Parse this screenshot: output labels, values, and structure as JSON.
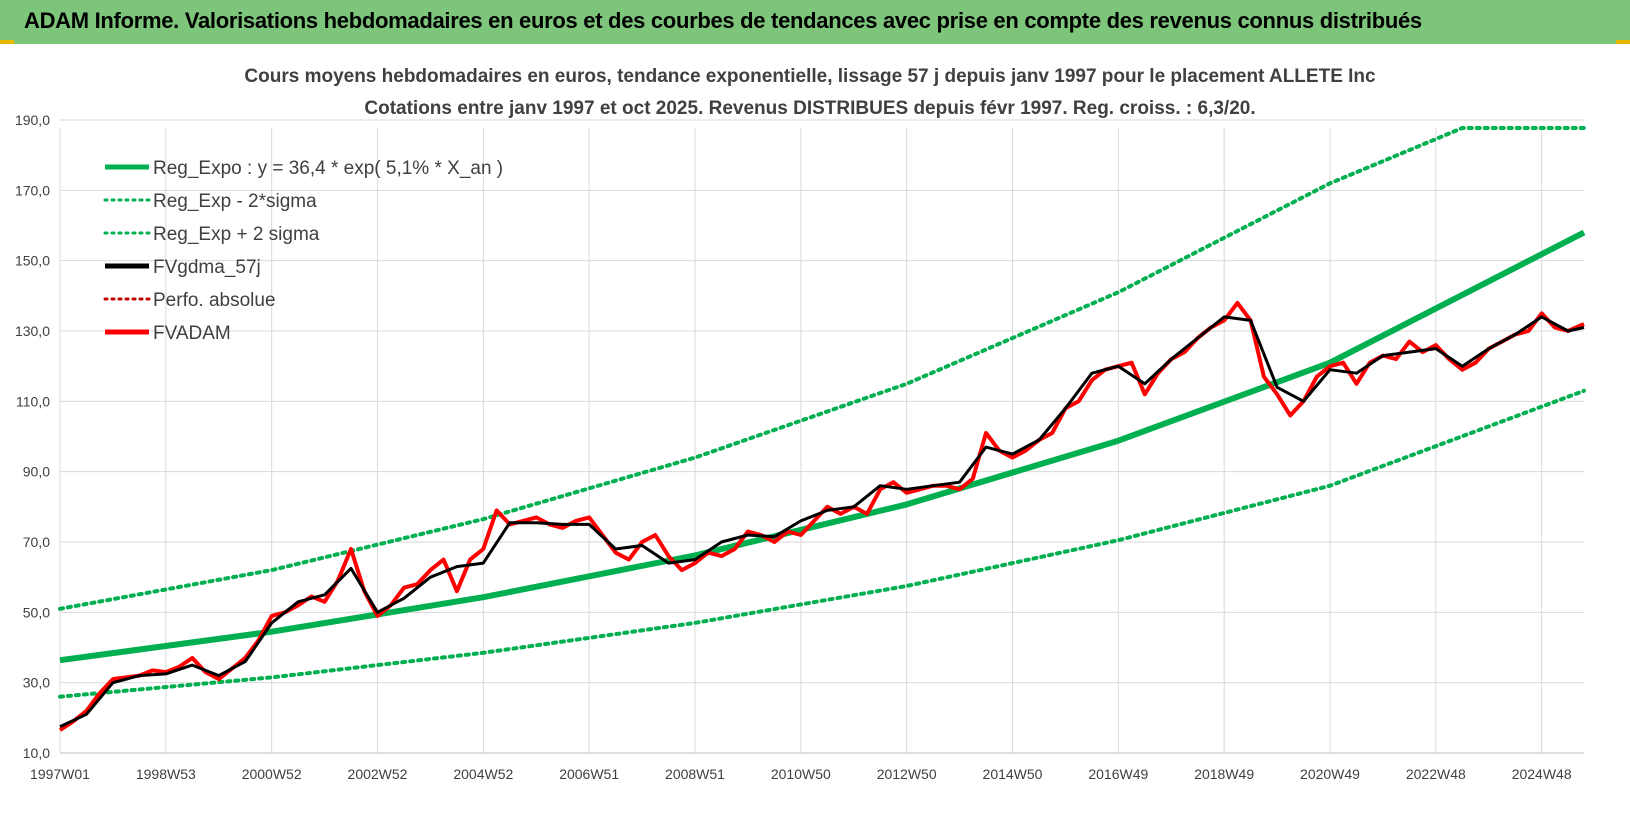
{
  "header": {
    "title": "ADAM Informe. Valorisations hebdomadaires en euros et des courbes de tendances avec prise en compte des revenus connus distribués"
  },
  "colors": {
    "header_bg": "#7dc57a",
    "trend_green": "#00b050",
    "smooth_black": "#000000",
    "price_red": "#ff0000",
    "perfo_red": "#c00000",
    "grid": "#d9d9d9"
  },
  "chart_data": {
    "type": "line",
    "title_line1": "Cours moyens hebdomadaires en euros, tendance exponentielle, lissage 57 j depuis janv 1997 pour le placement ALLETE Inc",
    "title_line2": "Cotations entre janv 1997 et oct 2025. Revenus DISTRIBUES depuis févr 1997. Reg. croiss. : 6,3/20.",
    "x_tick_labels": [
      "1997W01",
      "1998W53",
      "2000W52",
      "2002W52",
      "2004W52",
      "2006W51",
      "2008W51",
      "2010W50",
      "2012W50",
      "2014W50",
      "2016W49",
      "2018W49",
      "2020W49",
      "2022W48",
      "2024W48"
    ],
    "x_tick_years": [
      1997.0,
      1999.0,
      2001.0,
      2003.0,
      2005.0,
      2007.0,
      2009.0,
      2011.0,
      2013.0,
      2015.0,
      2017.0,
      2019.0,
      2021.0,
      2023.0,
      2025.0
    ],
    "x_range": [
      1997.0,
      2025.8
    ],
    "ylim": [
      10,
      200
    ],
    "y_ticks": [
      10,
      30,
      50,
      70,
      90,
      110,
      130,
      150,
      170,
      190
    ],
    "y_tick_labels": [
      "10,0",
      "30,0",
      "50,0",
      "70,0",
      "90,0",
      "110,0",
      "130,0",
      "150,0",
      "170,0",
      "190,0"
    ],
    "legend_position": "top-left",
    "series": [
      {
        "name": "Reg_Expo : y = 36,4 * exp( 5,1% *  X_an )",
        "style": "solid-thick",
        "color": "#00b050",
        "x": [
          1997.0,
          2001.0,
          2005.0,
          2009.0,
          2013.0,
          2017.0,
          2021.0,
          2025.8
        ],
        "y": [
          36.4,
          44.5,
          54.3,
          66.2,
          80.7,
          98.8,
          121.0,
          158.0
        ]
      },
      {
        "name": "Reg_Exp - 2*sigma",
        "style": "dotted",
        "color": "#00b050",
        "x": [
          1997.0,
          2001.0,
          2005.0,
          2009.0,
          2013.0,
          2017.0,
          2021.0,
          2025.8
        ],
        "y": [
          26.0,
          31.5,
          38.5,
          47.0,
          57.5,
          70.5,
          86.0,
          113.0
        ]
      },
      {
        "name": "Reg_Exp + 2 sigma",
        "style": "dotted",
        "color": "#00b050",
        "x": [
          1997.0,
          2001.0,
          2005.0,
          2009.0,
          2013.0,
          2017.0,
          2021.0,
          2023.5,
          2025.8
        ],
        "y": [
          51.0,
          62.0,
          76.5,
          94.0,
          115.0,
          141.0,
          172.0,
          200.0,
          200.0
        ]
      },
      {
        "name": "FVgdma_57j",
        "style": "solid",
        "color": "#000000",
        "x": [
          1997.0,
          1997.5,
          1998.0,
          1998.5,
          1999.0,
          1999.5,
          2000.0,
          2000.5,
          2001.0,
          2001.5,
          2002.0,
          2002.5,
          2003.0,
          2003.5,
          2004.0,
          2004.5,
          2005.0,
          2005.5,
          2006.0,
          2006.5,
          2007.0,
          2007.5,
          2008.0,
          2008.5,
          2009.0,
          2009.5,
          2010.0,
          2010.5,
          2011.0,
          2011.5,
          2012.0,
          2012.5,
          2013.0,
          2013.5,
          2014.0,
          2014.5,
          2015.0,
          2015.5,
          2016.0,
          2016.5,
          2017.0,
          2017.5,
          2018.0,
          2018.5,
          2019.0,
          2019.5,
          2020.0,
          2020.5,
          2021.0,
          2021.5,
          2022.0,
          2022.5,
          2023.0,
          2023.5,
          2024.0,
          2024.5,
          2025.0,
          2025.5,
          2025.8
        ],
        "y": [
          17.5,
          21.0,
          30.0,
          32.0,
          32.5,
          35.0,
          32.0,
          36.0,
          47.0,
          53.0,
          55.0,
          62.5,
          50.0,
          54.0,
          60.0,
          63.0,
          64.0,
          75.5,
          75.5,
          75.0,
          75.0,
          68.0,
          69.0,
          64.0,
          65.0,
          70.0,
          72.0,
          71.5,
          76.0,
          79.0,
          80.0,
          86.0,
          85.0,
          86.0,
          87.0,
          97.0,
          95.0,
          99.0,
          108.0,
          118.0,
          120.0,
          115.0,
          122.0,
          128.0,
          134.0,
          133.0,
          114.0,
          110.0,
          119.0,
          118.0,
          123.0,
          124.0,
          125.0,
          120.0,
          125.0,
          129.0,
          134.0,
          130.0,
          131.0
        ]
      },
      {
        "name": "Perfo. absolue",
        "style": "dotted",
        "color": "#c00000",
        "x": [],
        "y": []
      },
      {
        "name": "FVADAM",
        "style": "solid-thick",
        "color": "#ff0000",
        "x": [
          1997.0,
          1997.25,
          1997.5,
          1997.75,
          1998.0,
          1998.25,
          1998.5,
          1998.75,
          1999.0,
          1999.25,
          1999.5,
          1999.75,
          2000.0,
          2000.25,
          2000.5,
          2000.75,
          2001.0,
          2001.25,
          2001.5,
          2001.75,
          2002.0,
          2002.25,
          2002.5,
          2002.75,
          2003.0,
          2003.25,
          2003.5,
          2003.75,
          2004.0,
          2004.25,
          2004.5,
          2004.75,
          2005.0,
          2005.25,
          2005.5,
          2005.75,
          2006.0,
          2006.25,
          2006.5,
          2006.75,
          2007.0,
          2007.25,
          2007.5,
          2007.75,
          2008.0,
          2008.25,
          2008.5,
          2008.75,
          2009.0,
          2009.25,
          2009.5,
          2009.75,
          2010.0,
          2010.25,
          2010.5,
          2010.75,
          2011.0,
          2011.25,
          2011.5,
          2011.75,
          2012.0,
          2012.25,
          2012.5,
          2012.75,
          2013.0,
          2013.25,
          2013.5,
          2013.75,
          2014.0,
          2014.25,
          2014.5,
          2014.75,
          2015.0,
          2015.25,
          2015.5,
          2015.75,
          2016.0,
          2016.25,
          2016.5,
          2016.75,
          2017.0,
          2017.25,
          2017.5,
          2017.75,
          2018.0,
          2018.25,
          2018.5,
          2018.75,
          2019.0,
          2019.25,
          2019.5,
          2019.75,
          2020.0,
          2020.25,
          2020.5,
          2020.75,
          2021.0,
          2021.25,
          2021.5,
          2021.75,
          2022.0,
          2022.25,
          2022.5,
          2022.75,
          2023.0,
          2023.25,
          2023.5,
          2023.75,
          2024.0,
          2024.25,
          2024.5,
          2024.75,
          2025.0,
          2025.25,
          2025.5,
          2025.8
        ],
        "y": [
          16.5,
          19.0,
          22.0,
          27.0,
          31.0,
          31.5,
          32.0,
          33.5,
          33.0,
          34.5,
          37.0,
          33.0,
          31.0,
          34.0,
          37.0,
          42.0,
          49.0,
          50.0,
          52.0,
          54.5,
          53.0,
          59.0,
          68.0,
          56.0,
          49.0,
          52.0,
          57.0,
          58.0,
          62.0,
          65.0,
          56.0,
          65.0,
          68.0,
          79.0,
          75.0,
          76.0,
          77.0,
          75.0,
          74.0,
          76.0,
          77.0,
          72.0,
          67.0,
          65.0,
          70.0,
          72.0,
          66.0,
          62.0,
          64.0,
          67.0,
          66.0,
          68.0,
          73.0,
          72.0,
          70.0,
          73.0,
          72.0,
          76.0,
          80.0,
          78.0,
          80.0,
          78.0,
          85.0,
          87.0,
          84.0,
          85.0,
          86.0,
          86.0,
          85.0,
          88.0,
          101.0,
          96.0,
          94.0,
          96.0,
          99.0,
          101.0,
          108.0,
          110.0,
          116.0,
          119.0,
          120.0,
          121.0,
          112.0,
          118.0,
          122.0,
          124.0,
          128.0,
          131.0,
          133.0,
          138.0,
          133.0,
          117.0,
          112.0,
          106.0,
          110.0,
          117.0,
          120.0,
          121.0,
          115.0,
          121.0,
          123.0,
          122.0,
          127.0,
          124.0,
          126.0,
          122.0,
          119.0,
          121.0,
          125.0,
          127.0,
          129.0,
          130.0,
          135.0,
          131.0,
          130.0,
          132.0
        ]
      }
    ]
  }
}
